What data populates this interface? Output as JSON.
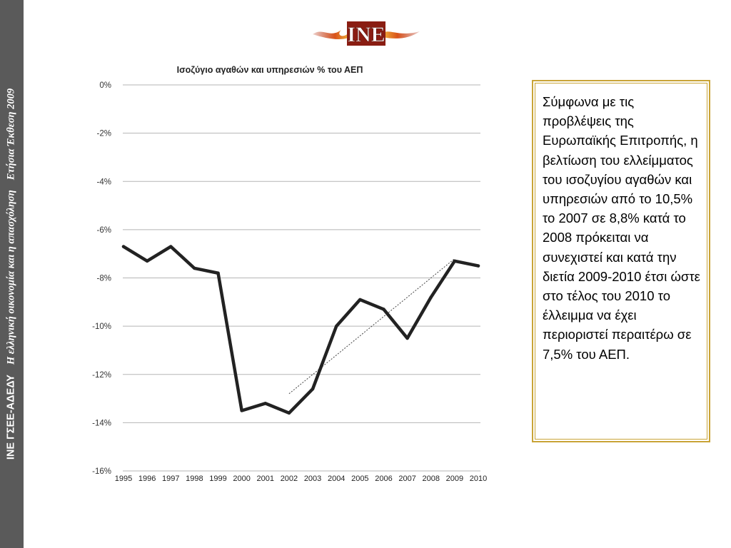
{
  "sidebar": {
    "org": "ΙΝΕ ΓΣΕΕ-ΑΔΕΔΥ",
    "subtitle": "Η ελληνική οικονομία  και η απασχόληση",
    "report": "Ετήσια Έκθεση 2009",
    "background": "#5a5a5a"
  },
  "logo": {
    "text": "INE",
    "icon": "ine-flame-logo"
  },
  "chart_data": {
    "type": "line",
    "title": "Ισοζύγιο αγαθών και υπηρεσιών % του ΑΕΠ",
    "xlabel": "",
    "ylabel": "",
    "categories": [
      "1995",
      "1996",
      "1997",
      "1998",
      "1999",
      "2000",
      "2001",
      "2002",
      "2003",
      "2004",
      "2005",
      "2006",
      "2007",
      "2008",
      "2009",
      "2010"
    ],
    "series": [
      {
        "values": [
          -6.7,
          -7.3,
          -6.7,
          -7.6,
          -7.8,
          -13.5,
          -13.2,
          -13.6,
          -12.6,
          -10.0,
          -8.9,
          -9.3,
          -10.5,
          -8.8,
          -7.3,
          -7.5
        ]
      }
    ],
    "trend": {
      "style": "dotted",
      "from": {
        "x": "2002",
        "y": -12.8
      },
      "to": {
        "x": "2009",
        "y": -7.2
      }
    },
    "ylim": [
      -16,
      0
    ],
    "yticks": [
      0,
      -2,
      -4,
      -6,
      -8,
      -10,
      -12,
      -14,
      -16
    ],
    "ytick_labels": [
      "0%",
      "-2%",
      "-4%",
      "-6%",
      "-8%",
      "-10%",
      "-12%",
      "-14%",
      "-16%"
    ],
    "grid": true,
    "line_color": "#222222",
    "grid_color": "#b5b5b5"
  },
  "note": {
    "text": "Σύμφωνα με τις προβλέψεις της Ευρωπαϊκής Επιτροπής, η βελτίωση του ελλείμματος του ισοζυγίου αγαθών και υπηρεσιών από το 10,5% το 2007 σε 8,8% κατά το 2008 πρόκειται να συνεχιστεί και κατά την διετία 2009-2010 έτσι ώστε στο τέλος του 2010 το έλλειμμα να έχει περιοριστεί περαιτέρω σε 7,5% του ΑΕΠ.",
    "border_color": "#c9a437"
  }
}
